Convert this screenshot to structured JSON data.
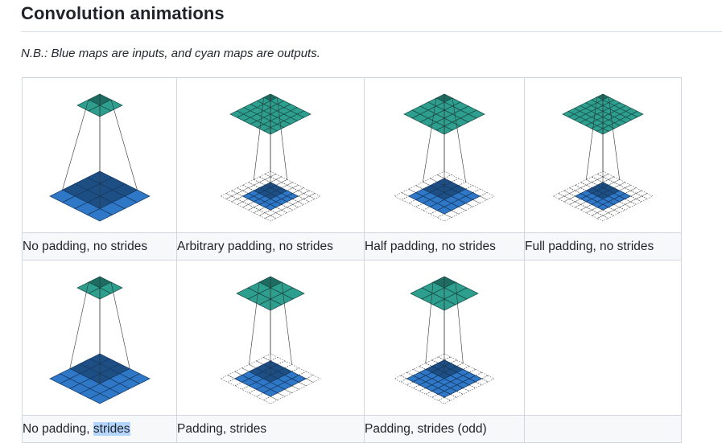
{
  "section": {
    "title": "Convolution animations",
    "note": "N.B.: Blue maps are inputs, and cyan maps are outputs."
  },
  "cells": [
    {
      "caption": "No padding, no strides",
      "icon": "convolution-animation",
      "input_grid": 4,
      "pad": 0,
      "output_grid": 2
    },
    {
      "caption": "Arbitrary padding, no strides",
      "icon": "convolution-animation",
      "input_grid": 5,
      "pad": 2,
      "output_grid": 6
    },
    {
      "caption": "Half padding, no strides",
      "icon": "convolution-animation",
      "input_grid": 5,
      "pad": 1,
      "output_grid": 5
    },
    {
      "caption": "Full padding, no strides",
      "icon": "convolution-animation",
      "input_grid": 5,
      "pad": 2,
      "output_grid": 7
    },
    {
      "caption_pre": "No padding, ",
      "caption_hl": "strides",
      "icon": "convolution-animation",
      "input_grid": 5,
      "pad": 0,
      "output_grid": 2
    },
    {
      "caption": "Padding, strides",
      "icon": "convolution-animation",
      "input_grid": 5,
      "pad": 1,
      "output_grid": 3
    },
    {
      "caption": "Padding, strides (odd)",
      "icon": "convolution-animation",
      "input_grid": 6,
      "pad": 1,
      "output_grid": 3
    },
    {
      "caption": "",
      "icon": "",
      "input_grid": 0,
      "pad": 0,
      "output_grid": 0
    }
  ],
  "colors": {
    "input": "#2f78c8",
    "input_dark": "#1d4f85",
    "output": "#2e9f8f",
    "output_dark": "#1d6b61",
    "selection": "#b4d5fe"
  }
}
